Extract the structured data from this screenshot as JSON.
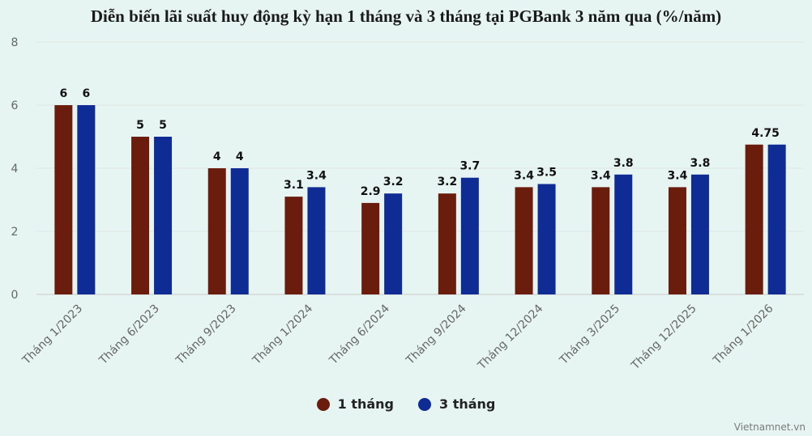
{
  "chart_data": {
    "type": "bar",
    "title": "Diễn biến lãi suất huy động kỳ hạn 1 tháng và 3 tháng tại PGBank 3 năm qua (%/năm)",
    "categories": [
      "Tháng 1/2023",
      "Tháng 6/2023",
      "Tháng 9/2023",
      "Tháng 1/2024",
      "Tháng 6/2024",
      "Tháng 9/2024",
      "Tháng 12/2024",
      "Tháng 3/2025",
      "Tháng 12/2025",
      "Tháng 1/2026"
    ],
    "series": [
      {
        "name": "1 tháng",
        "color": "#6b1d0d",
        "values": [
          6,
          5,
          4,
          3.1,
          2.9,
          3.2,
          3.4,
          3.4,
          3.4,
          4.75
        ]
      },
      {
        "name": "3 tháng",
        "color": "#0f2b94",
        "values": [
          6,
          5,
          4,
          3.4,
          3.2,
          3.7,
          3.5,
          3.8,
          3.8,
          4.75
        ]
      }
    ],
    "data_labels": [
      [
        "6",
        "6"
      ],
      [
        "5",
        "5"
      ],
      [
        "4",
        "4"
      ],
      [
        "3.1",
        "3.4"
      ],
      [
        "2.9",
        "3.2"
      ],
      [
        "3.2",
        "3.7"
      ],
      [
        "3.4",
        "3.5"
      ],
      [
        "3.4",
        "3.8"
      ],
      [
        "3.4",
        "3.8"
      ],
      [
        "4.75",
        ""
      ]
    ],
    "ylim": [
      0,
      8
    ],
    "yticks": [
      0,
      2,
      4,
      6,
      8
    ],
    "xlabel": "",
    "ylabel": "",
    "grid": true,
    "legend_position": "bottom"
  },
  "watermark": "Vietnamnet.vn"
}
